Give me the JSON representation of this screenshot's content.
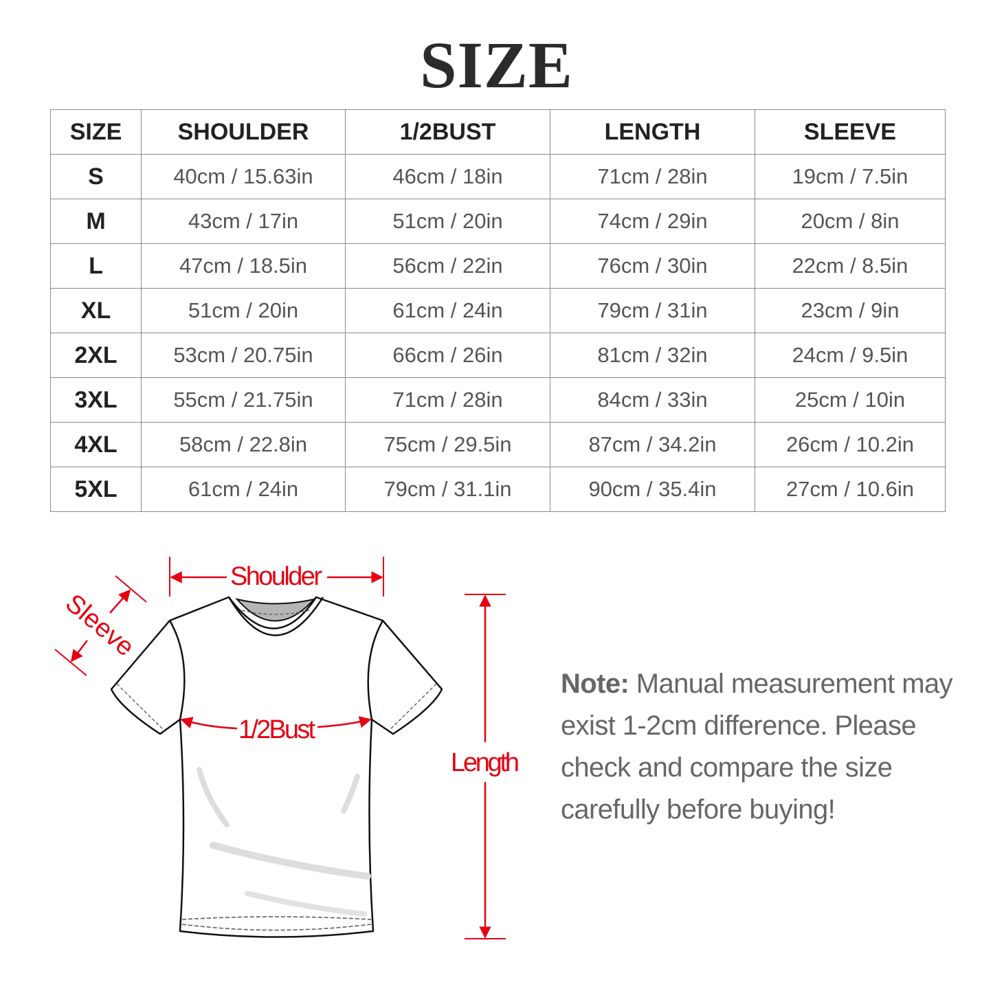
{
  "title": "SIZE",
  "accent_color": "#e60012",
  "table": {
    "headers": [
      "SIZE",
      "SHOULDER",
      "1/2BUST",
      "LENGTH",
      "SLEEVE"
    ],
    "rows": [
      [
        "S",
        "40cm / 15.63in",
        "46cm / 18in",
        "71cm / 28in",
        "19cm / 7.5in"
      ],
      [
        "M",
        "43cm / 17in",
        "51cm / 20in",
        "74cm / 29in",
        "20cm / 8in"
      ],
      [
        "L",
        "47cm / 18.5in",
        "56cm / 22in",
        "76cm / 30in",
        "22cm / 8.5in"
      ],
      [
        "XL",
        "51cm / 20in",
        "61cm / 24in",
        "79cm / 31in",
        "23cm / 9in"
      ],
      [
        "2XL",
        "53cm / 20.75in",
        "66cm / 26in",
        "81cm / 32in",
        "24cm / 9.5in"
      ],
      [
        "3XL",
        "55cm / 21.75in",
        "71cm / 28in",
        "84cm / 33in",
        "25cm / 10in"
      ],
      [
        "4XL",
        "58cm / 22.8in",
        "75cm / 29.5in",
        "87cm / 34.2in",
        "26cm / 10.2in"
      ],
      [
        "5XL",
        "61cm / 24in",
        "79cm / 31.1in",
        "90cm / 35.4in",
        "27cm / 10.6in"
      ]
    ]
  },
  "diagram": {
    "shoulder": "Shoulder",
    "sleeve": "Sleeve",
    "bust": "1/2Bust",
    "length": "Length"
  },
  "note": {
    "label": "Note:",
    "text": " Manual measurement may exist 1-2cm difference. Please check and compare the size carefully before buying!"
  }
}
